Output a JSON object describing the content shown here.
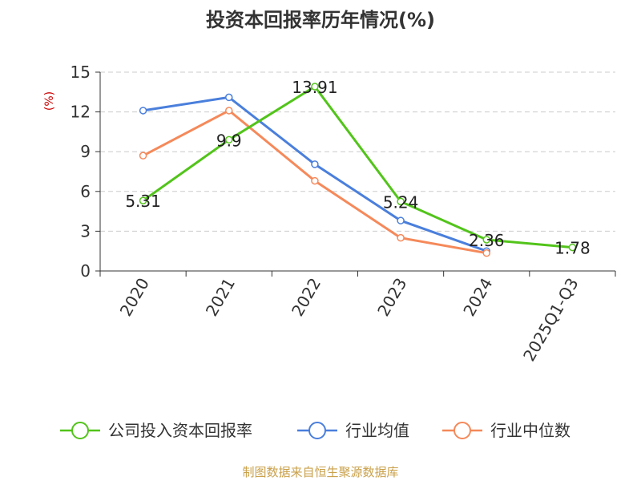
{
  "chart_data": {
    "type": "line",
    "title": "投资本回报率历年情况(%)",
    "ylabel": "(%)",
    "xlabel": "",
    "categories": [
      "2020",
      "2021",
      "2022",
      "2023",
      "2024",
      "2025Q1-Q3"
    ],
    "ylim": [
      0,
      15
    ],
    "yticks": [
      0,
      3,
      6,
      9,
      12,
      15
    ],
    "grid": true,
    "legend_position": "bottom",
    "series": [
      {
        "name": "公司投入资本回报率",
        "color": "#52c41a",
        "values": [
          5.31,
          9.9,
          13.91,
          5.24,
          2.36,
          1.78
        ],
        "labels": [
          "5.31",
          "9.9",
          "13.91",
          "5.24",
          "2.36",
          "1.78"
        ]
      },
      {
        "name": "行业均值",
        "color": "#4a7fdc",
        "values": [
          12.1,
          13.1,
          8.05,
          3.8,
          1.5,
          null
        ]
      },
      {
        "name": "行业中位数",
        "color": "#f5895a",
        "values": [
          8.7,
          12.1,
          6.8,
          2.5,
          1.35,
          null
        ]
      }
    ],
    "source": "制图数据来自恒生聚源数据库"
  }
}
